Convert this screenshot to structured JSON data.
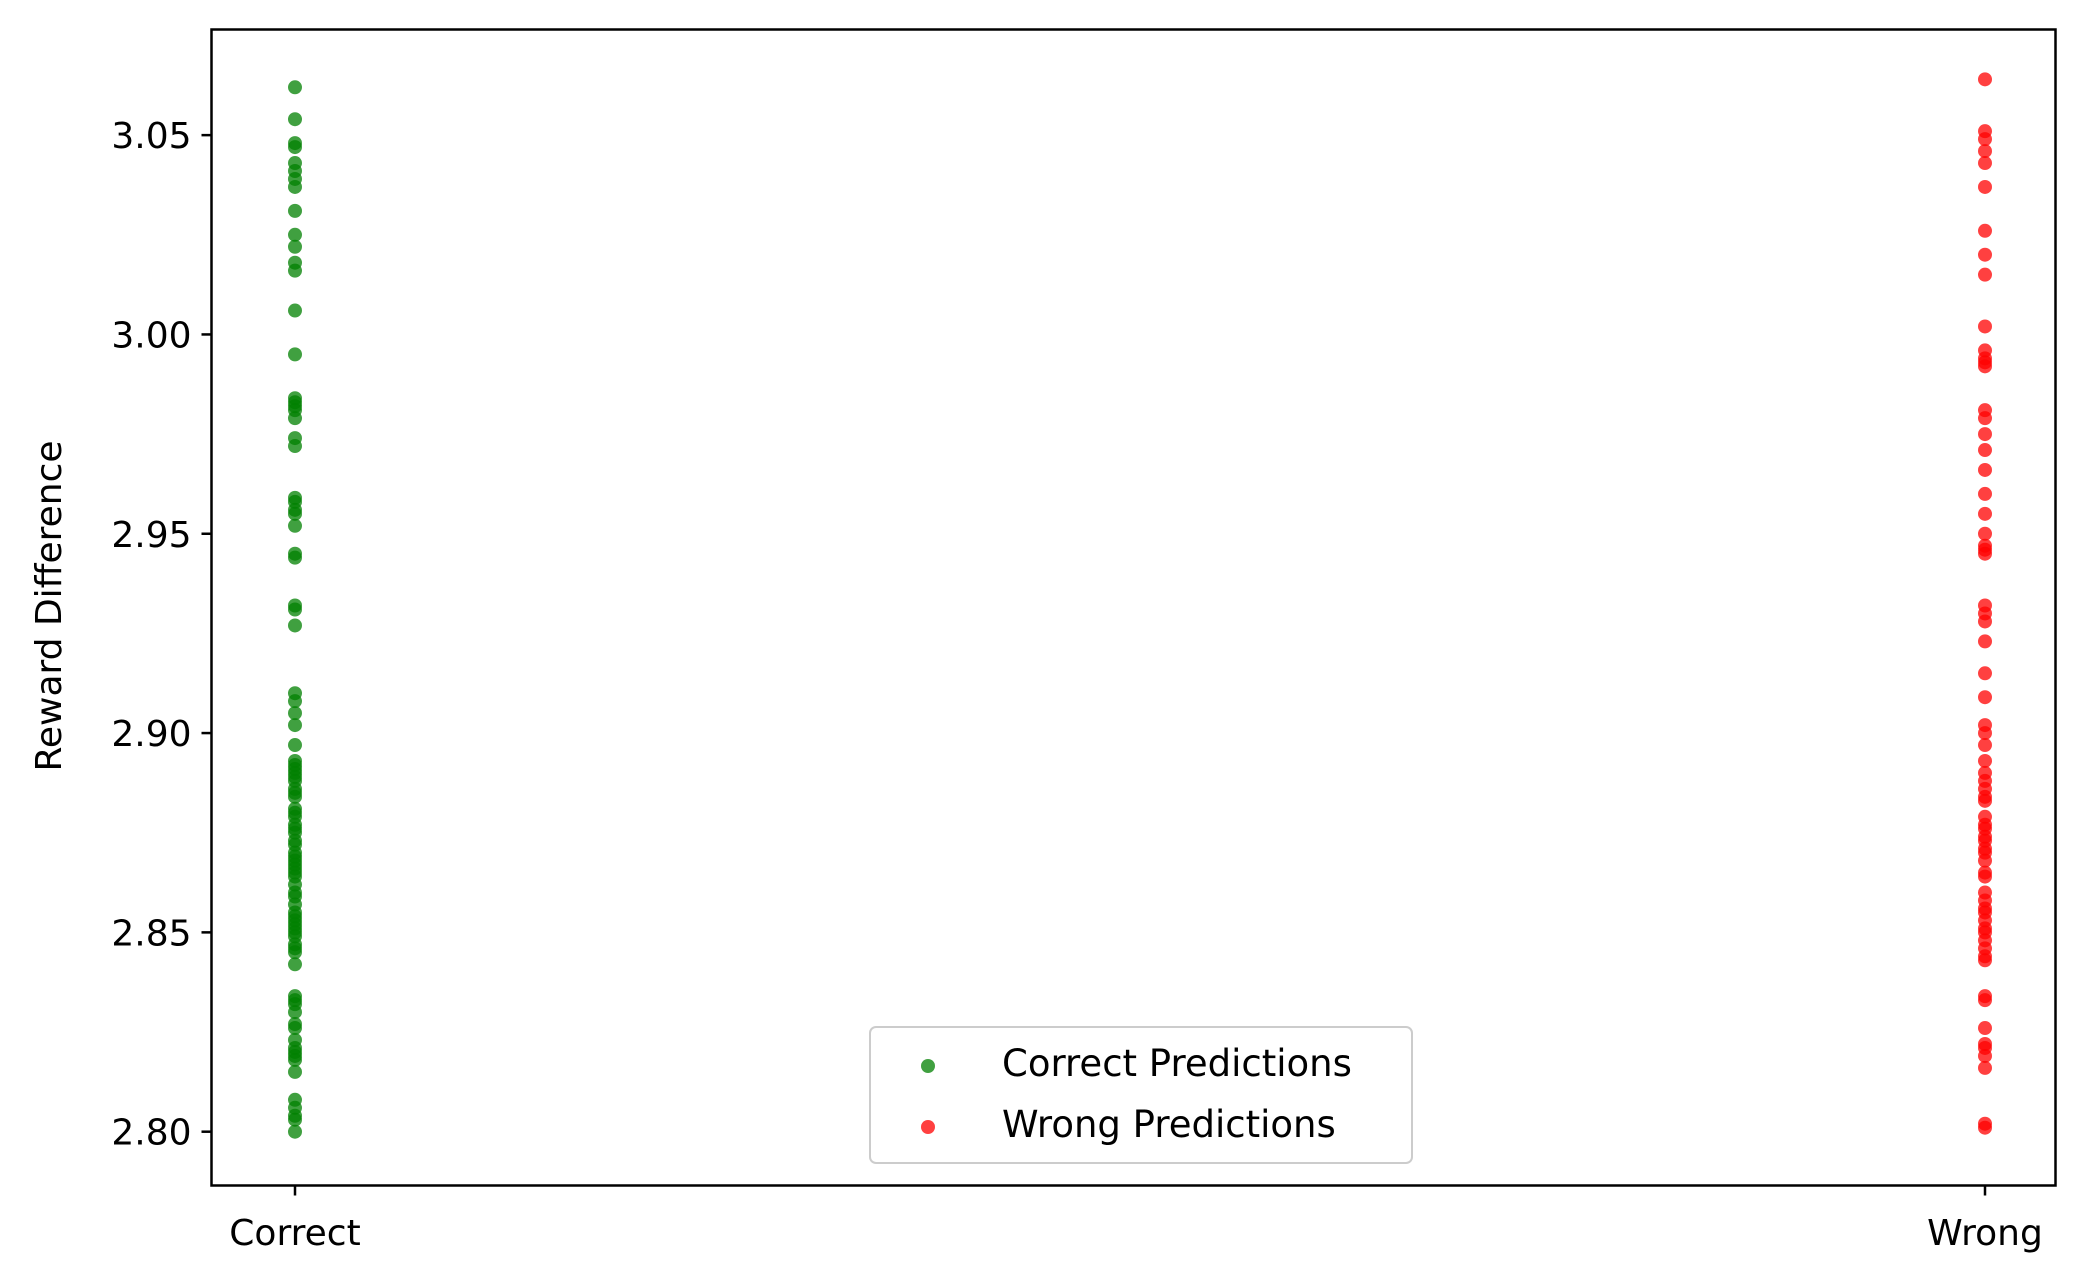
{
  "chart_data": {
    "type": "scatter",
    "title": "",
    "xlabel": "",
    "ylabel": "Reward Difference",
    "categories": [
      "Correct",
      "Wrong"
    ],
    "ylim": [
      2.7865,
      3.0765
    ],
    "yticks": [
      "2.80",
      "2.85",
      "2.90",
      "2.95",
      "3.00",
      "3.05"
    ],
    "grid": false,
    "legend_position": "bottom-center",
    "series": [
      {
        "name": "Correct Predictions",
        "color": "#008000",
        "opacity": 0.75,
        "category": "Correct",
        "values": [
          3.062,
          3.054,
          3.048,
          3.047,
          3.043,
          3.041,
          3.039,
          3.037,
          3.031,
          3.025,
          3.022,
          3.018,
          3.016,
          3.006,
          2.995,
          2.984,
          2.983,
          2.982,
          2.981,
          2.979,
          2.974,
          2.972,
          2.959,
          2.958,
          2.956,
          2.955,
          2.952,
          2.945,
          2.944,
          2.932,
          2.931,
          2.927,
          2.91,
          2.908,
          2.905,
          2.902,
          2.897,
          2.893,
          2.892,
          2.891,
          2.89,
          2.889,
          2.888,
          2.886,
          2.885,
          2.884,
          2.881,
          2.88,
          2.879,
          2.877,
          2.876,
          2.875,
          2.873,
          2.872,
          2.87,
          2.869,
          2.868,
          2.867,
          2.866,
          2.865,
          2.864,
          2.862,
          2.86,
          2.859,
          2.857,
          2.855,
          2.854,
          2.853,
          2.852,
          2.851,
          2.85,
          2.849,
          2.847,
          2.846,
          2.845,
          2.842,
          2.834,
          2.833,
          2.832,
          2.83,
          2.827,
          2.826,
          2.823,
          2.821,
          2.82,
          2.819,
          2.818,
          2.815,
          2.808,
          2.806,
          2.804,
          2.803,
          2.8
        ]
      },
      {
        "name": "Wrong Predictions",
        "color": "#ff0000",
        "opacity": 0.75,
        "category": "Wrong",
        "values": [
          3.064,
          3.051,
          3.049,
          3.046,
          3.043,
          3.037,
          3.026,
          3.02,
          3.015,
          3.002,
          2.996,
          2.994,
          2.993,
          2.992,
          2.981,
          2.979,
          2.975,
          2.971,
          2.966,
          2.96,
          2.955,
          2.95,
          2.947,
          2.946,
          2.945,
          2.932,
          2.93,
          2.928,
          2.923,
          2.915,
          2.909,
          2.902,
          2.9,
          2.897,
          2.893,
          2.89,
          2.888,
          2.886,
          2.884,
          2.883,
          2.879,
          2.877,
          2.876,
          2.874,
          2.873,
          2.871,
          2.87,
          2.868,
          2.865,
          2.864,
          2.86,
          2.858,
          2.856,
          2.855,
          2.853,
          2.851,
          2.85,
          2.848,
          2.846,
          2.844,
          2.843,
          2.834,
          2.833,
          2.826,
          2.822,
          2.821,
          2.819,
          2.816,
          2.802,
          2.801
        ]
      }
    ]
  }
}
